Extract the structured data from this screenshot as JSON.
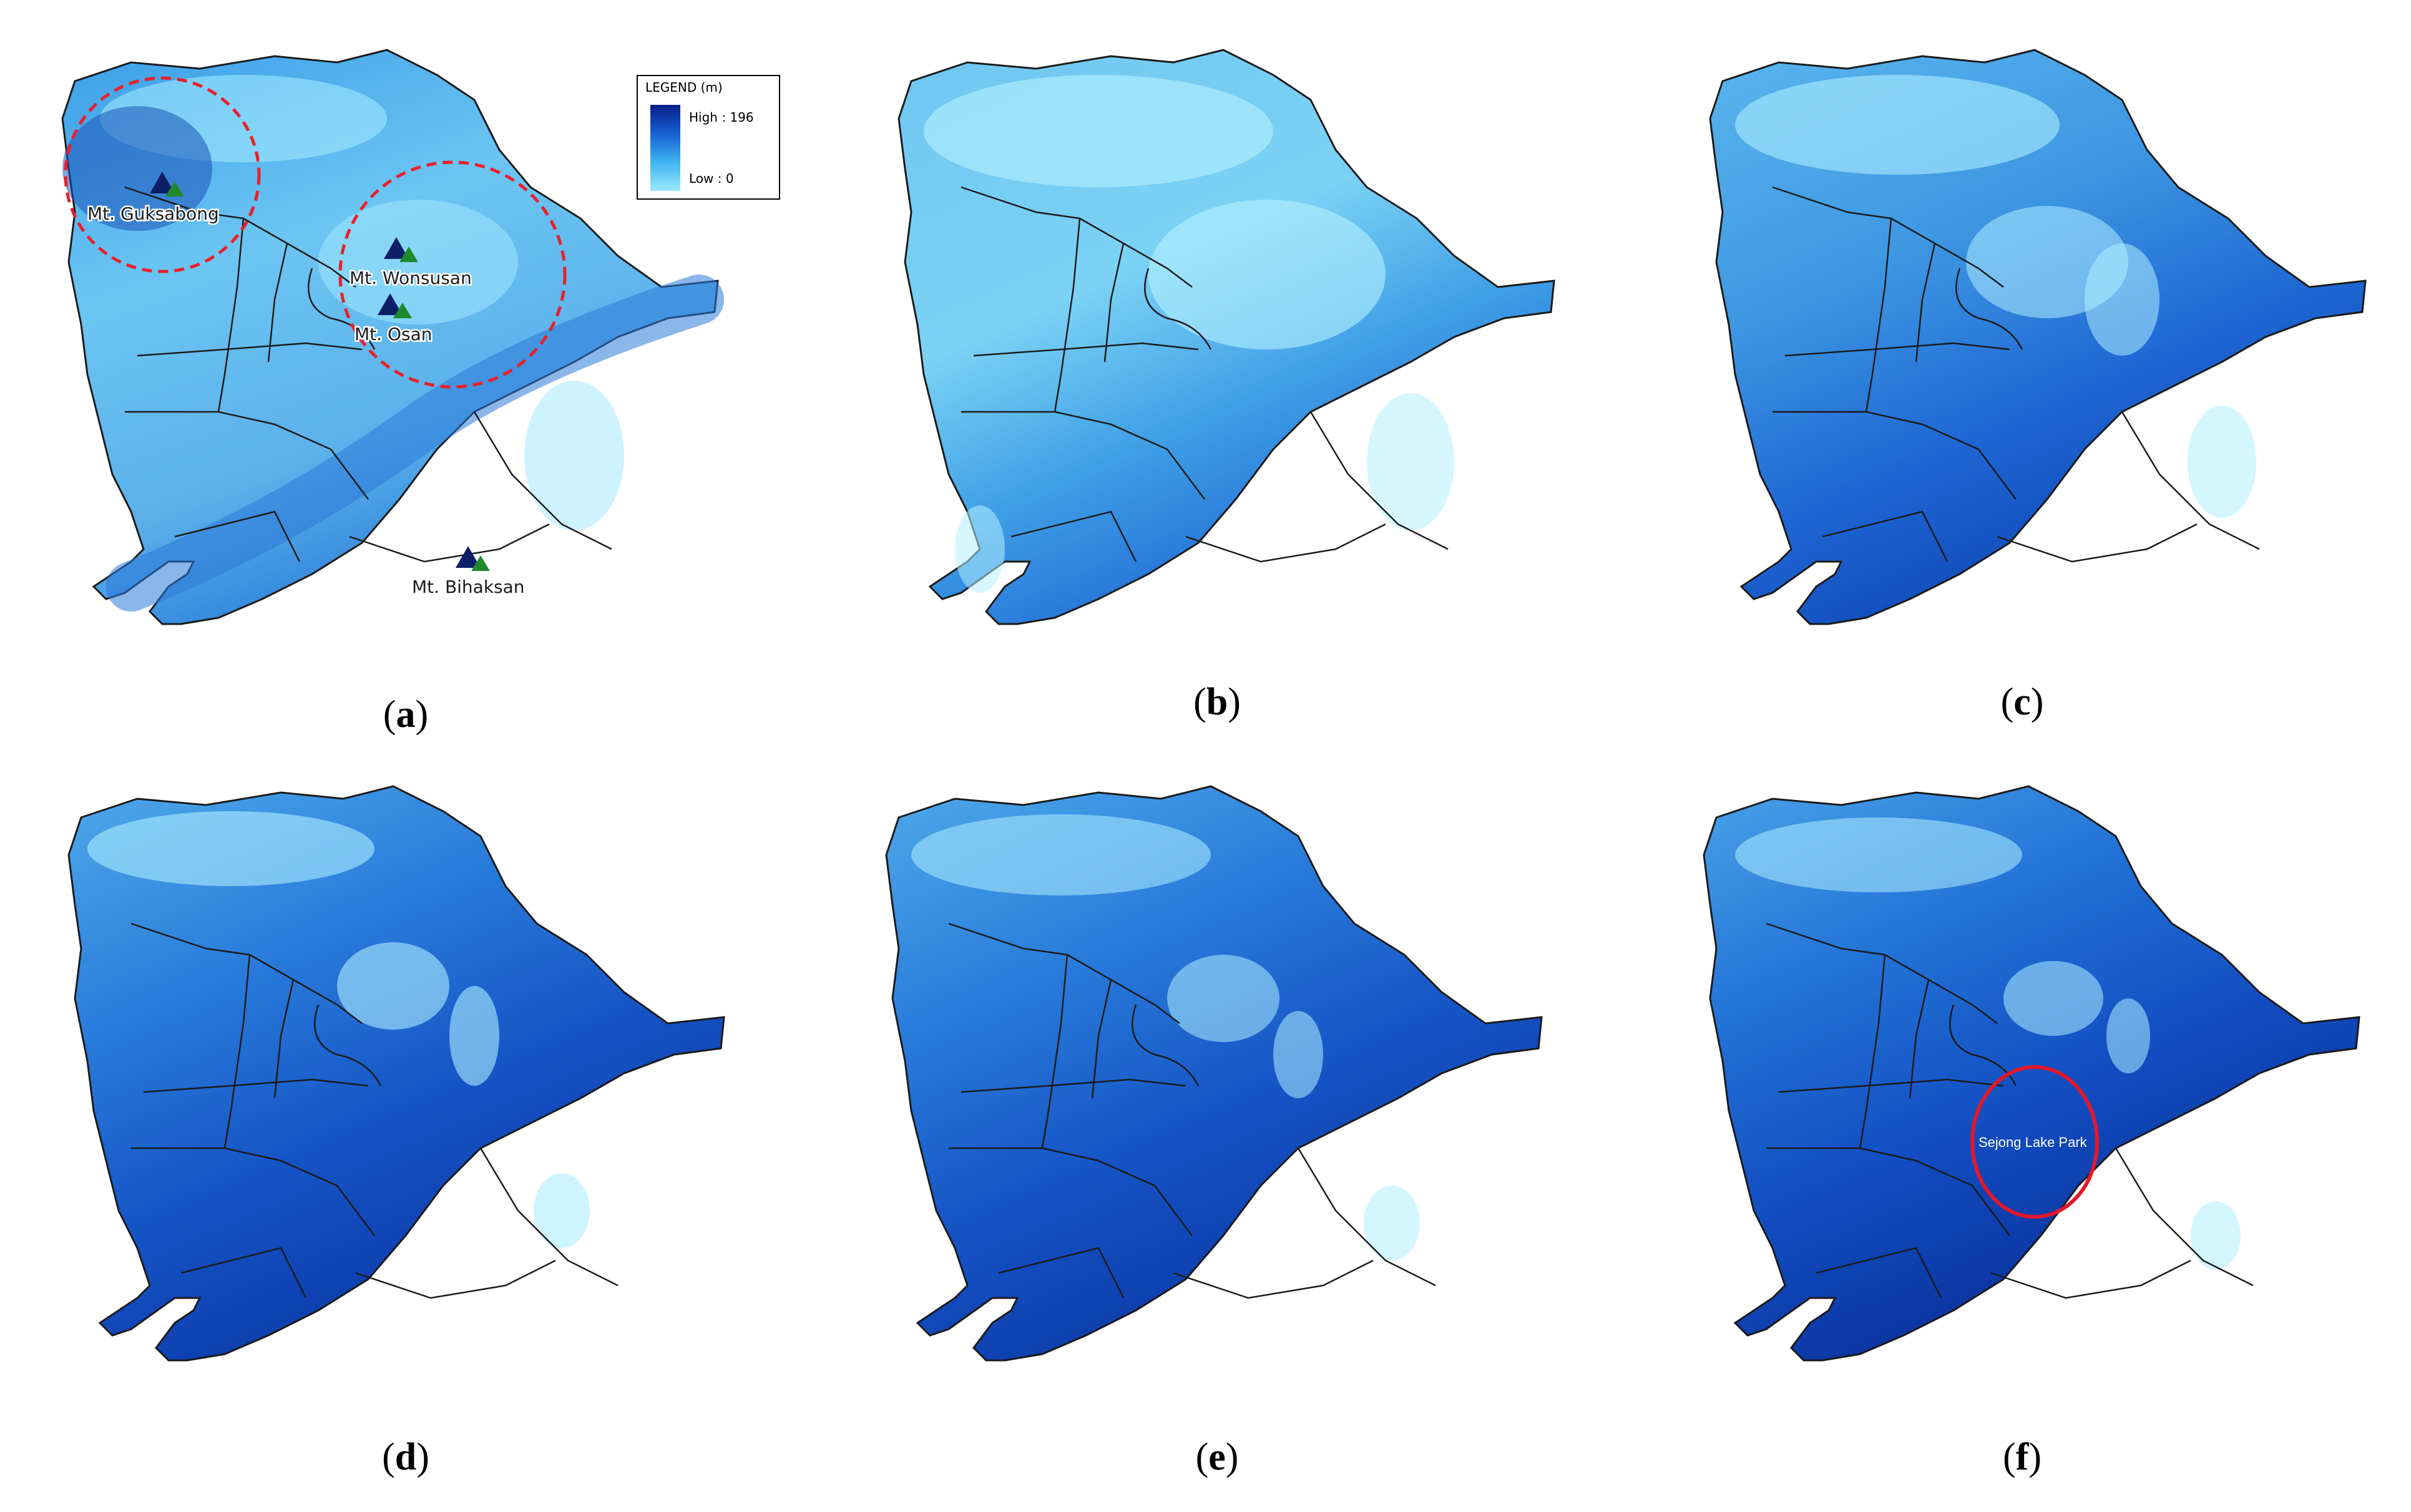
{
  "figure": {
    "panels": [
      {
        "id": "a",
        "caption": "a",
        "scheme": "dem"
      },
      {
        "id": "b",
        "caption": "b",
        "scheme": "light"
      },
      {
        "id": "c",
        "caption": "c",
        "scheme": "mid"
      },
      {
        "id": "d",
        "caption": "d",
        "scheme": "dark"
      },
      {
        "id": "e",
        "caption": "e",
        "scheme": "dark"
      },
      {
        "id": "f",
        "caption": "f",
        "scheme": "darker"
      }
    ]
  },
  "legend": {
    "title": "LEGEND (m)",
    "high_label": "High : 196",
    "low_label": "Low : 0"
  },
  "mountains": {
    "guksabong": "Mt. Guksabong",
    "wonsusan": "Mt. Wonsusan",
    "osan": "Mt. Osan",
    "bihaksan": "Mt. Bihaksan"
  },
  "park_label": "Sejong Lake Park",
  "colors": {
    "district_line": "#1a1a1a",
    "highlight_dashed": "#e8202a",
    "highlight_solid": "#e3182a",
    "triangle_dark": "#0d1f66",
    "triangle_green": "#1f8a2c",
    "water_dark": "#071f86",
    "water_mid": "#1f67d6",
    "land_light": "#8fe3fb"
  }
}
